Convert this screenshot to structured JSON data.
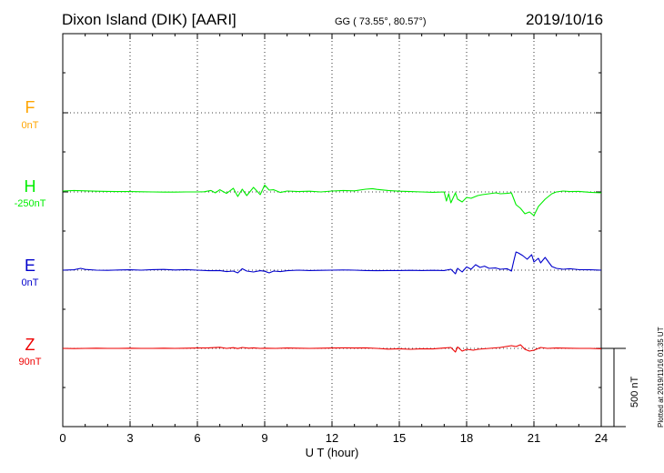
{
  "header": {
    "station": "Dixon Island (DIK)  [AARI]",
    "coords": "GG ( 73.55°,  80.57°)",
    "date": "2019/10/16"
  },
  "footer": {
    "plotted": "Plotted at 2019/11/16 01:35 UT"
  },
  "chart_data": {
    "type": "line",
    "xlabel": "U T (hour)",
    "xlim": [
      0,
      24
    ],
    "xticks": [
      0,
      3,
      6,
      9,
      12,
      15,
      18,
      21,
      24
    ],
    "grid": true,
    "scale_bar": {
      "label": "500 nT",
      "value_nT": 500
    },
    "series": [
      {
        "name": "F",
        "offset": "0nT",
        "color": "#ffa500",
        "x": [],
        "y": []
      },
      {
        "name": "H",
        "offset": "-250nT",
        "color": "#00ee00",
        "x": [
          0,
          0.5,
          1,
          1.5,
          2,
          2.5,
          3,
          3.5,
          4,
          4.5,
          5,
          5.5,
          6,
          6.3,
          6.6,
          6.8,
          7,
          7.3,
          7.6,
          7.8,
          8,
          8.2,
          8.5,
          8.8,
          9,
          9.2,
          9.4,
          9.7,
          10,
          10.5,
          11,
          11.5,
          12,
          12.5,
          13,
          13.5,
          13.8,
          14,
          14.5,
          15,
          15.5,
          16,
          16.5,
          17,
          17.1,
          17.2,
          17.3,
          17.5,
          17.6,
          17.8,
          18,
          18.2,
          18.5,
          18.7,
          19,
          19.3,
          19.5,
          19.8,
          20,
          20.2,
          20.4,
          20.6,
          20.8,
          21,
          21.2,
          21.5,
          21.8,
          22,
          22.3,
          22.6,
          23,
          23.5,
          24
        ],
        "y": [
          5,
          8,
          6,
          4,
          3,
          2,
          2,
          1,
          0,
          -1,
          -1,
          0,
          0,
          1,
          8,
          -5,
          12,
          -8,
          20,
          -25,
          15,
          -20,
          25,
          -15,
          38,
          10,
          12,
          -3,
          5,
          2,
          4,
          0,
          5,
          8,
          6,
          15,
          18,
          14,
          8,
          4,
          2,
          0,
          -2,
          0,
          -50,
          -10,
          -60,
          -5,
          -40,
          -55,
          -30,
          -35,
          -20,
          -15,
          -10,
          -5,
          -10,
          -8,
          -5,
          -70,
          -90,
          -120,
          -110,
          -130,
          -80,
          -40,
          -10,
          0,
          5,
          2,
          3,
          -2,
          -5
        ]
      },
      {
        "name": "E",
        "offset": "0nT",
        "color": "#0000cc",
        "x": [
          0,
          0.5,
          0.8,
          1,
          1.5,
          2,
          2.5,
          3,
          3.5,
          4,
          4.5,
          5,
          5.5,
          6,
          6.5,
          7,
          7.3,
          7.6,
          7.8,
          8,
          8.2,
          8.5,
          8.8,
          9,
          9.2,
          9.4,
          9.7,
          10,
          10.5,
          11,
          11.5,
          12,
          12.5,
          13,
          13.5,
          14,
          14.5,
          15,
          15.5,
          16,
          16.5,
          17,
          17.3,
          17.5,
          17.6,
          17.8,
          18,
          18.2,
          18.4,
          18.6,
          18.8,
          19,
          19.3,
          19.5,
          19.8,
          20,
          20.1,
          20.2,
          20.3,
          20.5,
          20.7,
          20.9,
          21,
          21.2,
          21.3,
          21.5,
          21.8,
          22,
          22.3,
          22.6,
          23,
          23.5,
          24
        ],
        "y": [
          0,
          2,
          10,
          4,
          0,
          -1,
          1,
          2,
          0,
          3,
          4,
          1,
          3,
          0,
          -3,
          -2,
          -8,
          -5,
          -15,
          8,
          -5,
          -10,
          -3,
          -6,
          -15,
          -5,
          -8,
          -3,
          0,
          -2,
          -1,
          0,
          1,
          0,
          -2,
          -3,
          -2,
          -2,
          -1,
          -2,
          -1,
          -2,
          5,
          -20,
          10,
          -10,
          18,
          5,
          30,
          15,
          22,
          10,
          12,
          5,
          8,
          -5,
          50,
          100,
          95,
          80,
          60,
          85,
          45,
          65,
          40,
          70,
          20,
          10,
          5,
          8,
          3,
          2,
          0
        ]
      },
      {
        "name": "Z",
        "offset": "90nT",
        "color": "#ee0000",
        "x": [
          0,
          0.5,
          1,
          1.5,
          2,
          2.5,
          3,
          3.5,
          4,
          4.5,
          5,
          5.5,
          6,
          6.5,
          7,
          7.3,
          7.6,
          7.8,
          8,
          8.3,
          8.5,
          8.8,
          9,
          9.5,
          10,
          10.5,
          11,
          11.5,
          12,
          12.5,
          13,
          13.5,
          14,
          14.5,
          15,
          15.5,
          16,
          16.5,
          17,
          17.3,
          17.5,
          17.6,
          17.8,
          18,
          18.3,
          18.5,
          19,
          19.5,
          20,
          20.2,
          20.4,
          20.6,
          20.8,
          21,
          21.3,
          21.6,
          22,
          22.5,
          23,
          23.5,
          24
        ],
        "y": [
          0,
          -1,
          0,
          1,
          0,
          0,
          1,
          0,
          0,
          1,
          0,
          1,
          2,
          3,
          6,
          0,
          4,
          -1,
          5,
          1,
          3,
          0,
          1,
          0,
          2,
          1,
          0,
          1,
          2,
          3,
          2,
          3,
          0,
          -4,
          -2,
          -5,
          -2,
          -3,
          2,
          5,
          -20,
          8,
          -15,
          -5,
          -10,
          -5,
          0,
          5,
          15,
          10,
          20,
          -5,
          -15,
          -10,
          5,
          0,
          2,
          1,
          0,
          0,
          -2
        ]
      }
    ]
  }
}
